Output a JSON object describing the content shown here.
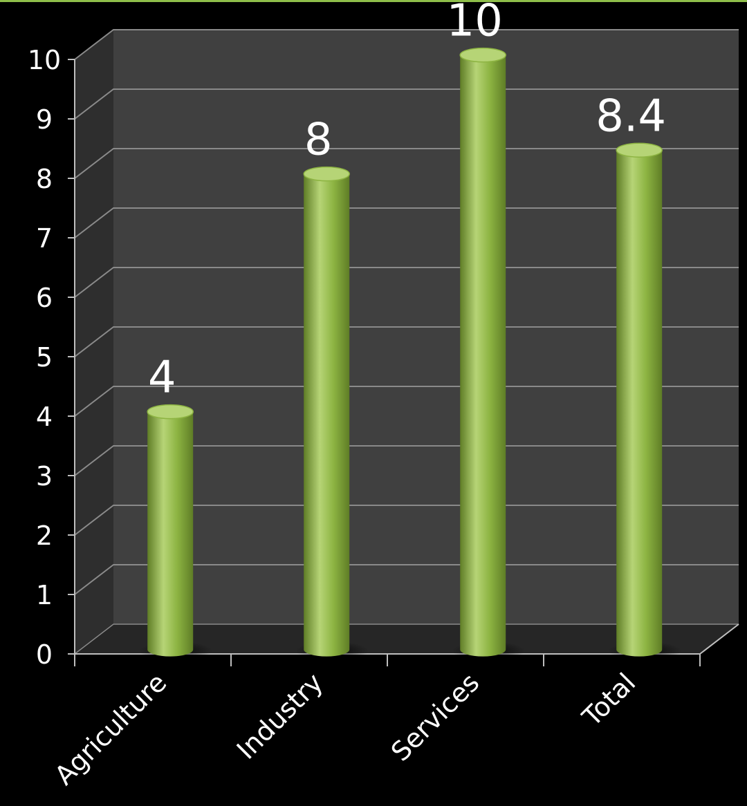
{
  "chart_data": {
    "type": "bar",
    "style": "3d-cylinder",
    "categories": [
      "Agriculture",
      "Industry",
      "Services",
      "Total"
    ],
    "values": [
      4,
      8,
      10,
      8.4
    ],
    "data_labels": [
      "4",
      "8",
      "10",
      "8.4"
    ],
    "title": "",
    "xlabel": "",
    "ylabel": "",
    "ylim": [
      0,
      10
    ],
    "yticks": [
      "0",
      "1",
      "2",
      "3",
      "4",
      "5",
      "6",
      "7",
      "8",
      "9",
      "10"
    ],
    "grid": true,
    "legend": "none",
    "colors": {
      "background": "#000000",
      "plot_back_wall": "#404040",
      "plot_side_wall": "#2e2e2e",
      "plot_floor": "#262626",
      "gridline": "#8a8a8a",
      "bar": "#8db442",
      "bar_highlight": "#b6d476",
      "bar_shadow": "#5f7d26",
      "text": "#ffffff",
      "top_rule": "#8fbf4a"
    }
  }
}
